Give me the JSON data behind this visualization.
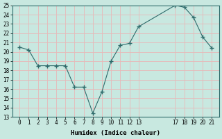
{
  "x": [
    0,
    1,
    2,
    3,
    4,
    5,
    6,
    7,
    8,
    9,
    10,
    11,
    12,
    13,
    17,
    18,
    19,
    20,
    21
  ],
  "y": [
    20.5,
    20.2,
    18.5,
    18.5,
    18.5,
    18.5,
    16.2,
    16.2,
    13.4,
    15.7,
    19.0,
    20.7,
    20.9,
    22.7,
    25.0,
    24.8,
    23.7,
    21.6,
    20.4
  ],
  "line_color": "#2e6b6b",
  "marker": "+",
  "background_color": "#c8e8e0",
  "grid_color": "#e8b8b8",
  "xlabel": "Humidex (Indice chaleur)",
  "ylim": [
    13,
    25
  ],
  "yticks": [
    13,
    14,
    15,
    16,
    17,
    18,
    19,
    20,
    21,
    22,
    23,
    24,
    25
  ],
  "xticks": [
    0,
    1,
    2,
    3,
    4,
    5,
    6,
    7,
    8,
    9,
    10,
    11,
    12,
    13,
    17,
    18,
    19,
    20,
    21
  ],
  "xtick_labels": [
    "0",
    "1",
    "2",
    "3",
    "4",
    "5",
    "6",
    "7",
    "8",
    "9",
    "10",
    "11",
    "12",
    "13",
    "17",
    "18",
    "19",
    "20",
    "21"
  ],
  "xlim": [
    -0.8,
    21.8
  ]
}
